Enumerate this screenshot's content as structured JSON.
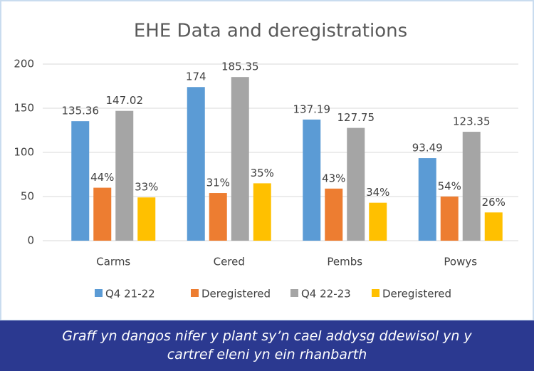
{
  "chart_data": {
    "type": "bar",
    "title": "EHE Data and deregistrations",
    "categories": [
      "Carms",
      "Cered",
      "Pembs",
      "Powys"
    ],
    "series": [
      {
        "name": "Q4 21-22",
        "color": "#5b9bd5",
        "values": [
          135.36,
          174,
          137.19,
          93.49
        ]
      },
      {
        "name": "Deregistered",
        "color": "#ed7d31",
        "values": [
          60,
          54,
          59,
          50
        ],
        "annotations": [
          "44%",
          "31%",
          "43%",
          "54%"
        ]
      },
      {
        "name": "Q4 22-23",
        "color": "#a5a5a5",
        "values": [
          147.02,
          185.35,
          127.75,
          123.35
        ]
      },
      {
        "name": "Deregistered",
        "color": "#ffc000",
        "values": [
          49,
          65,
          43,
          32
        ],
        "annotations": [
          "33%",
          "35%",
          "34%",
          "26%"
        ]
      }
    ],
    "ylim": [
      0,
      200
    ],
    "yticks": [
      0,
      50,
      100,
      150,
      200
    ],
    "grid": true,
    "legend": "bottom"
  },
  "caption": "Graff yn dangos nifer y plant sy’n cael addysg ddewisol yn y cartref eleni yn ein rhanbarth"
}
